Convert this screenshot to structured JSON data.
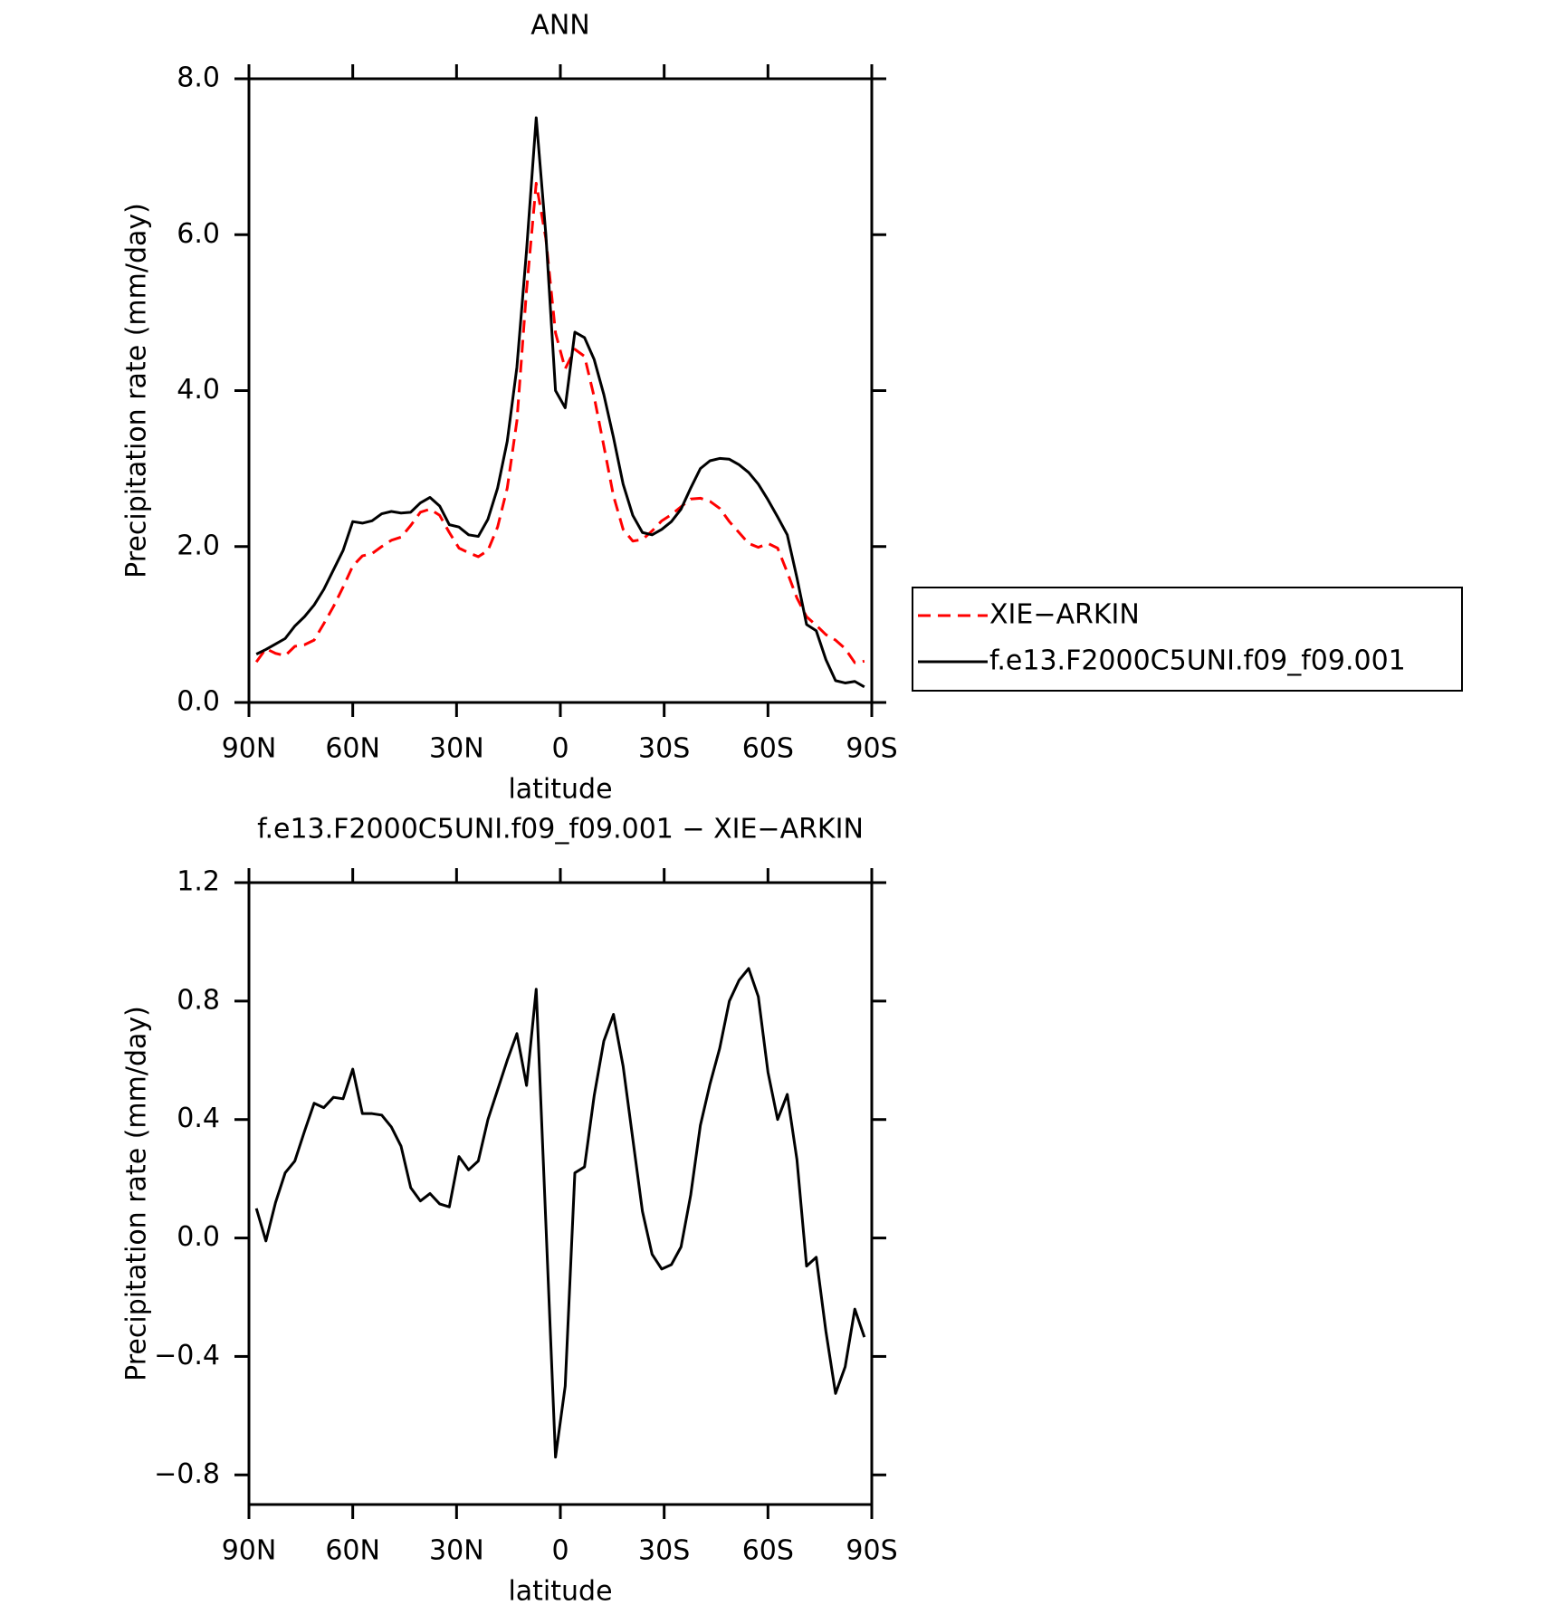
{
  "chart_data": [
    {
      "type": "line",
      "title": "ANN",
      "x_label": "latitude",
      "y_label": "Precipitation rate (mm/day)",
      "xlim": [
        90,
        -90
      ],
      "xticks": [
        {
          "value": 90,
          "label": "90N"
        },
        {
          "value": 60,
          "label": "60N"
        },
        {
          "value": 30,
          "label": "30N"
        },
        0,
        {
          "value": -30,
          "label": "30S"
        },
        {
          "value": -60,
          "label": "60S"
        },
        {
          "value": -90,
          "label": "90S"
        }
      ],
      "ylim": [
        0,
        8
      ],
      "yticks": [
        {
          "value": 0,
          "label": "0.0"
        },
        {
          "value": 2,
          "label": "2.0"
        },
        {
          "value": 4,
          "label": "4.0"
        },
        {
          "value": 6,
          "label": "6.0"
        },
        {
          "value": 8,
          "label": "8.0"
        }
      ],
      "legend": "right",
      "x": [
        87.86,
        85.1,
        82.31,
        79.53,
        76.74,
        73.95,
        71.16,
        68.37,
        65.58,
        62.79,
        60.0,
        57.21,
        54.42,
        51.63,
        48.84,
        46.04,
        43.25,
        40.46,
        37.67,
        34.88,
        32.09,
        29.3,
        26.51,
        23.72,
        20.93,
        18.14,
        15.35,
        12.56,
        9.77,
        6.98,
        4.19,
        1.4,
        -1.4,
        -4.19,
        -6.98,
        -9.77,
        -12.56,
        -15.35,
        -18.14,
        -20.93,
        -23.72,
        -26.51,
        -29.3,
        -32.09,
        -34.88,
        -37.67,
        -40.46,
        -43.25,
        -46.04,
        -48.84,
        -51.63,
        -54.42,
        -57.21,
        -60.0,
        -62.79,
        -65.58,
        -68.37,
        -71.16,
        -73.95,
        -76.74,
        -79.53,
        -82.31,
        -85.1,
        -87.86
      ],
      "series": [
        {
          "name": "XIE−ARKIN",
          "color": "#ff0000",
          "style": "dashed",
          "values": [
            0.52,
            0.69,
            0.63,
            0.6,
            0.72,
            0.74,
            0.8,
            1.01,
            1.23,
            1.48,
            1.75,
            1.88,
            1.91,
            2.0,
            2.08,
            2.12,
            2.27,
            2.44,
            2.48,
            2.4,
            2.18,
            1.98,
            1.92,
            1.87,
            1.95,
            2.25,
            2.75,
            3.61,
            5.29,
            6.66,
            5.95,
            4.74,
            4.28,
            4.53,
            4.44,
            3.92,
            3.29,
            2.65,
            2.22,
            2.07,
            2.09,
            2.2,
            2.33,
            2.41,
            2.51,
            2.61,
            2.62,
            2.58,
            2.49,
            2.32,
            2.18,
            2.04,
            1.99,
            2.04,
            1.98,
            1.67,
            1.34,
            1.1,
            0.99,
            0.87,
            0.8,
            0.69,
            0.51,
            0.53
          ]
        },
        {
          "name": "f.e13.F2000C5UNI.f09_f09.001",
          "color": "#000000",
          "style": "solid",
          "values": [
            0.62,
            0.68,
            0.75,
            0.82,
            0.98,
            1.1,
            1.25,
            1.45,
            1.7,
            1.95,
            2.32,
            2.3,
            2.33,
            2.42,
            2.45,
            2.43,
            2.44,
            2.56,
            2.63,
            2.52,
            2.28,
            2.25,
            2.15,
            2.13,
            2.35,
            2.75,
            3.35,
            4.3,
            5.8,
            7.5,
            6.0,
            4.0,
            3.78,
            4.75,
            4.68,
            4.4,
            3.95,
            3.4,
            2.8,
            2.4,
            2.18,
            2.15,
            2.22,
            2.32,
            2.48,
            2.75,
            3.0,
            3.1,
            3.13,
            3.12,
            3.05,
            2.95,
            2.8,
            2.6,
            2.38,
            2.15,
            1.6,
            1.0,
            0.92,
            0.55,
            0.28,
            0.25,
            0.27,
            0.2
          ]
        }
      ]
    },
    {
      "type": "line",
      "title": "f.e13.F2000C5UNI.f09_f09.001 − XIE−ARKIN",
      "x_label": "latitude",
      "y_label": "Precipitation rate (mm/day)",
      "xlim": [
        90,
        -90
      ],
      "xticks": [
        {
          "value": 90,
          "label": "90N"
        },
        {
          "value": 60,
          "label": "60N"
        },
        {
          "value": 30,
          "label": "30N"
        },
        0,
        {
          "value": -30,
          "label": "30S"
        },
        {
          "value": -60,
          "label": "60S"
        },
        {
          "value": -90,
          "label": "90S"
        }
      ],
      "ylim": [
        -0.9,
        1.2
      ],
      "yticks": [
        {
          "value": -0.8,
          "label": "−0.8"
        },
        {
          "value": -0.4,
          "label": "−0.4"
        },
        {
          "value": 0,
          "label": "0.0"
        },
        {
          "value": 0.4,
          "label": "0.4"
        },
        {
          "value": 0.8,
          "label": "0.8"
        },
        {
          "value": 1.2,
          "label": "1.2"
        }
      ],
      "x": [
        87.86,
        85.1,
        82.31,
        79.53,
        76.74,
        73.95,
        71.16,
        68.37,
        65.58,
        62.79,
        60.0,
        57.21,
        54.42,
        51.63,
        48.84,
        46.04,
        43.25,
        40.46,
        37.67,
        34.88,
        32.09,
        29.3,
        26.51,
        23.72,
        20.93,
        18.14,
        15.35,
        12.56,
        9.77,
        6.98,
        4.19,
        1.4,
        -1.4,
        -4.19,
        -6.98,
        -9.77,
        -12.56,
        -15.35,
        -18.14,
        -20.93,
        -23.72,
        -26.51,
        -29.3,
        -32.09,
        -34.88,
        -37.67,
        -40.46,
        -43.25,
        -46.04,
        -48.84,
        -51.63,
        -54.42,
        -57.21,
        -60.0,
        -62.79,
        -65.58,
        -68.37,
        -71.16,
        -73.95,
        -76.74,
        -79.53,
        -82.31,
        -85.1,
        -87.86
      ],
      "color": "#000000",
      "values": [
        0.1,
        -0.01,
        0.12,
        0.22,
        0.26,
        0.36,
        0.455,
        0.44,
        0.475,
        0.47,
        0.57,
        0.42,
        0.42,
        0.415,
        0.375,
        0.31,
        0.17,
        0.125,
        0.15,
        0.115,
        0.105,
        0.275,
        0.23,
        0.26,
        0.4,
        0.5,
        0.6,
        0.69,
        0.515,
        0.84,
        0.05,
        -0.74,
        -0.5,
        0.22,
        0.24,
        0.48,
        0.665,
        0.755,
        0.58,
        0.335,
        0.09,
        -0.055,
        -0.105,
        -0.09,
        -0.03,
        0.145,
        0.38,
        0.52,
        0.64,
        0.8,
        0.87,
        0.91,
        0.815,
        0.56,
        0.4,
        0.485,
        0.265,
        -0.095,
        -0.065,
        -0.315,
        -0.525,
        -0.435,
        -0.24,
        -0.335
      ]
    }
  ]
}
